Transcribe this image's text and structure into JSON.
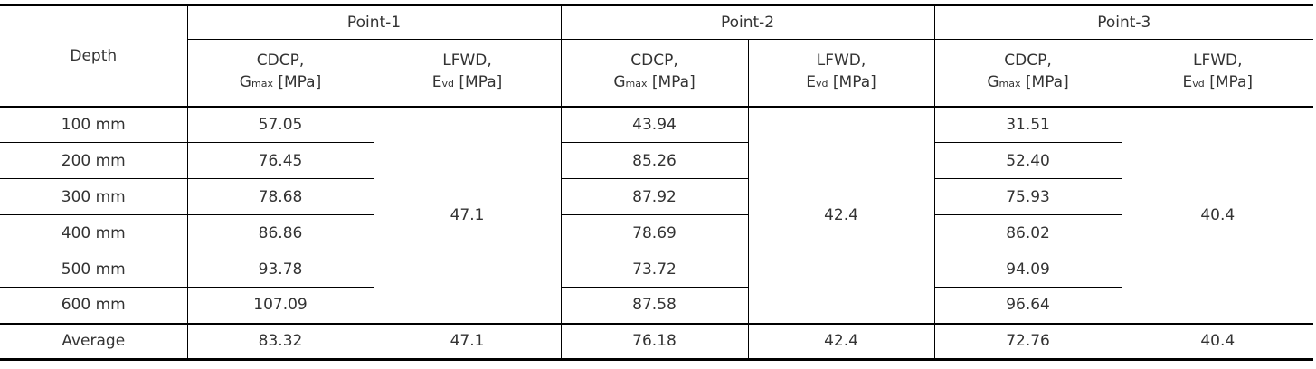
{
  "table": {
    "header": {
      "depth": "Depth",
      "points": [
        "Point-1",
        "Point-2",
        "Point-3"
      ],
      "columns": [
        {
          "name": "CDCP,",
          "symbol": "G",
          "subscript": "max",
          "unit": "[MPa]"
        },
        {
          "name": "LFWD,",
          "symbol": "E",
          "subscript": "vd",
          "unit": "[MPa]"
        },
        {
          "name": "CDCP,",
          "symbol": "G",
          "subscript": "max",
          "unit": "[MPa]"
        },
        {
          "name": "LFWD,",
          "symbol": "E",
          "subscript": "vd",
          "unit": "[MPa]"
        },
        {
          "name": "CDCP,",
          "symbol": "G",
          "subscript": "max",
          "unit": "[MPa]"
        },
        {
          "name": "LFWD,",
          "symbol": "E",
          "subscript": "vd",
          "unit": "[MPa]"
        }
      ]
    },
    "rows": [
      {
        "depth": "100 mm",
        "cdcp": [
          "57.05",
          "43.94",
          "31.51"
        ]
      },
      {
        "depth": "200 mm",
        "cdcp": [
          "76.45",
          "85.26",
          "52.40"
        ]
      },
      {
        "depth": "300 mm",
        "cdcp": [
          "78.68",
          "87.92",
          "75.93"
        ]
      },
      {
        "depth": "400 mm",
        "cdcp": [
          "86.86",
          "78.69",
          "86.02"
        ]
      },
      {
        "depth": "500 mm",
        "cdcp": [
          "93.78",
          "73.72",
          "94.09"
        ]
      },
      {
        "depth": "600 mm",
        "cdcp": [
          "107.09",
          "87.58",
          "96.64"
        ]
      }
    ],
    "lfwd": [
      "47.1",
      "42.4",
      "40.4"
    ],
    "average": {
      "label": "Average",
      "values": [
        "83.32",
        "47.1",
        "76.18",
        "42.4",
        "72.76",
        "40.4"
      ]
    }
  }
}
